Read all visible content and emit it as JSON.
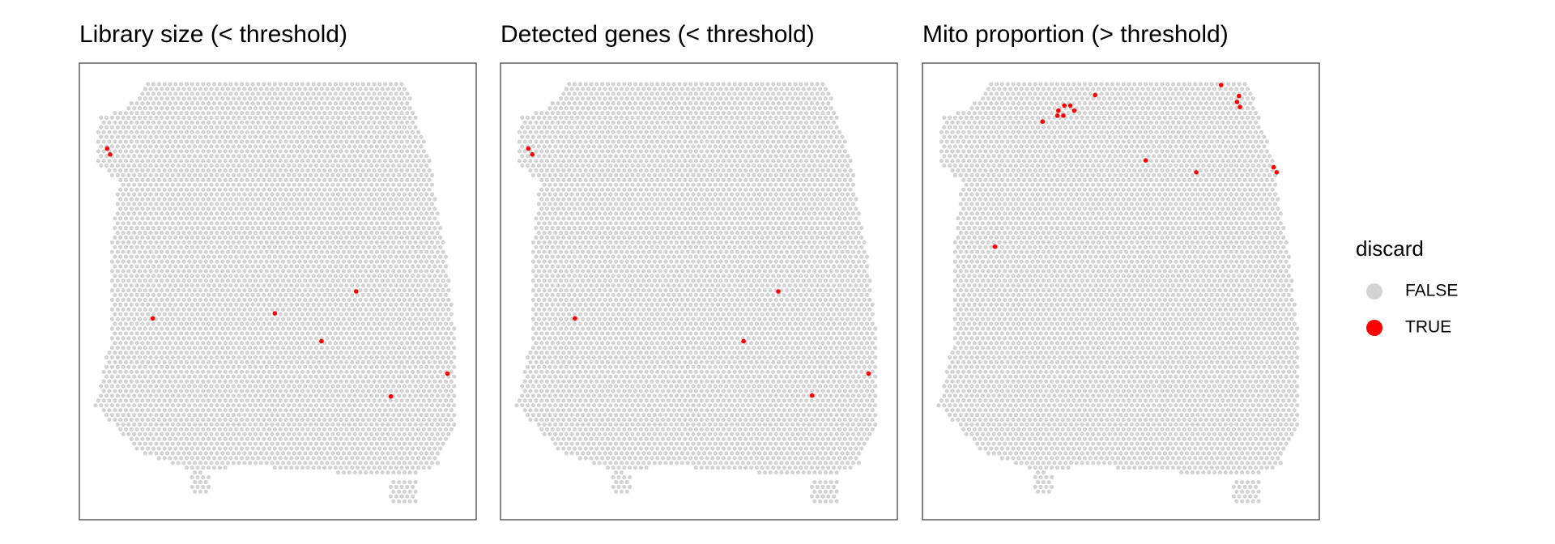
{
  "chart_data": [
    {
      "type": "scatter",
      "title": "Library size (< threshold)",
      "xlim": [
        0,
        100
      ],
      "ylim": [
        0,
        100
      ],
      "series": [
        {
          "name": "TRUE",
          "color": "#ff0000",
          "x": [
            7,
            7.75,
            18.5,
            49.25,
            69.75,
            61,
            92.75,
            78.5
          ],
          "values": [
            81.3,
            80,
            44.1,
            45.2,
            50,
            39.1,
            32,
            27
          ]
        }
      ]
    },
    {
      "type": "scatter",
      "title": "Detected genes (< threshold)",
      "xlim": [
        0,
        100
      ],
      "ylim": [
        0,
        100
      ],
      "series": [
        {
          "name": "TRUE",
          "color": "#ff0000",
          "x": [
            7,
            8,
            18.75,
            70,
            61.25,
            92.75,
            78.5
          ],
          "values": [
            81.3,
            80,
            44.1,
            50,
            39.1,
            32,
            27.2
          ]
        }
      ]
    },
    {
      "type": "scatter",
      "title": "Mito proportion (> threshold)",
      "xlim": [
        0,
        100
      ],
      "ylim": [
        0,
        100
      ],
      "series": [
        {
          "name": "TRUE",
          "color": "#ff0000",
          "x": [
            43.5,
            75.25,
            79.75,
            79.25,
            80,
            35.75,
            37.25,
            34.25,
            38.25,
            35.5,
            34,
            30.25,
            56.25,
            69,
            88.5,
            89.25,
            18.25
          ],
          "values": [
            93,
            95.2,
            92.8,
            91.5,
            90.4,
            90.7,
            90.7,
            89.6,
            89.6,
            88.5,
            88.5,
            87.2,
            78.7,
            76.1,
            77.2,
            76.1,
            59.8
          ]
        }
      ]
    }
  ],
  "legend": {
    "title": "discard",
    "entries": [
      {
        "name": "FALSE",
        "color": "#d3d3d3"
      },
      {
        "name": "TRUE",
        "color": "#ff0000"
      }
    ]
  }
}
